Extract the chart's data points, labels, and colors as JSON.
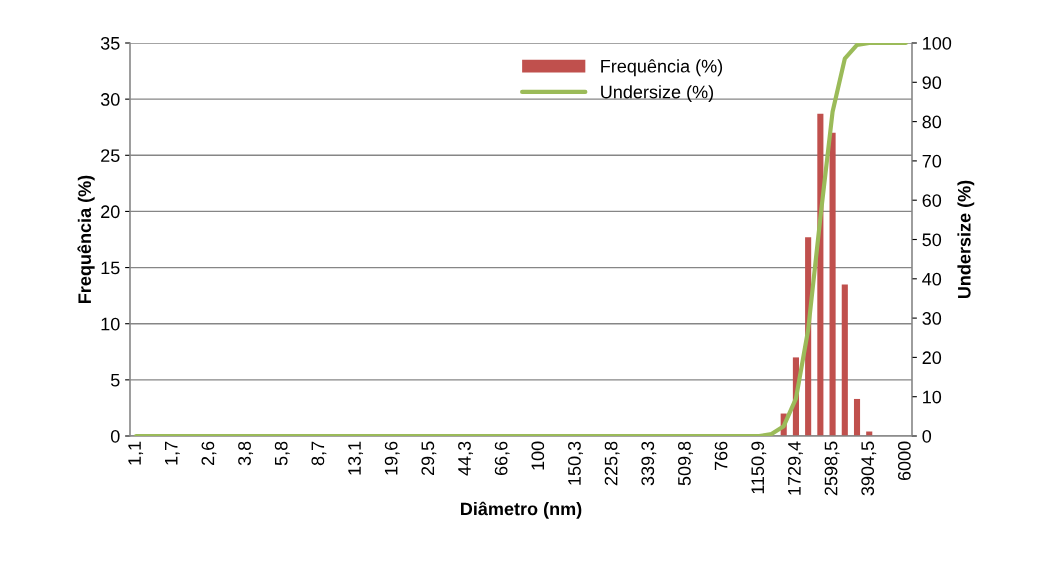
{
  "chart_data": {
    "type": "bar",
    "xlabel": "Diâmetro (nm)",
    "ylabel": "Frequência (%)",
    "y2label": "Undersize (%)",
    "categories": [
      "1,1",
      null,
      null,
      "1,7",
      null,
      null,
      "2,6",
      null,
      null,
      "3,8",
      null,
      null,
      "5,8",
      null,
      null,
      "8,7",
      null,
      null,
      "13,1",
      null,
      null,
      "19,6",
      null,
      null,
      "29,5",
      null,
      null,
      "44,3",
      null,
      null,
      "66,6",
      null,
      null,
      "100",
      null,
      null,
      "150,3",
      null,
      null,
      "225,8",
      null,
      null,
      "339,3",
      null,
      null,
      "509,8",
      null,
      null,
      "766",
      null,
      null,
      "1150,9",
      null,
      null,
      "1729,4",
      null,
      null,
      "2598,5",
      null,
      null,
      "3904,5",
      null,
      null,
      "6000"
    ],
    "series": [
      {
        "name": "Frequência (%)",
        "color": "#c0504d",
        "values": [
          0,
          0,
          0,
          0,
          0,
          0,
          0,
          0,
          0,
          0,
          0,
          0,
          0,
          0,
          0,
          0,
          0,
          0,
          0,
          0,
          0,
          0,
          0,
          0,
          0,
          0,
          0,
          0,
          0,
          0,
          0,
          0,
          0,
          0,
          0,
          0,
          0,
          0,
          0,
          0,
          0,
          0,
          0,
          0,
          0,
          0,
          0,
          0,
          0,
          0,
          0,
          0,
          0,
          2,
          7,
          17.7,
          28.7,
          27,
          13.5,
          3.3,
          0.4,
          0,
          0,
          0
        ]
      },
      {
        "name": "Undersize (%)",
        "type": "line",
        "axis": "y2",
        "color": "#9bbb59",
        "values": [
          0,
          0,
          0,
          0,
          0,
          0,
          0,
          0,
          0,
          0,
          0,
          0,
          0,
          0,
          0,
          0,
          0,
          0,
          0,
          0,
          0,
          0,
          0,
          0,
          0,
          0,
          0,
          0,
          0,
          0,
          0,
          0,
          0,
          0,
          0,
          0,
          0,
          0,
          0,
          0,
          0,
          0,
          0,
          0,
          0,
          0,
          0,
          0,
          0,
          0,
          0,
          0,
          0.5,
          2.5,
          9.5,
          27,
          55.5,
          82.5,
          96,
          99.5,
          100,
          100,
          100,
          100
        ]
      }
    ],
    "ylim": [
      0,
      35
    ],
    "yticks": [
      0,
      5,
      10,
      15,
      20,
      25,
      30,
      35
    ],
    "y2lim": [
      0,
      100
    ],
    "y2ticks": [
      0,
      10,
      20,
      30,
      40,
      50,
      60,
      70,
      80,
      90,
      100
    ],
    "grid": "y",
    "legend": "top",
    "marker": "none",
    "line_style": "solid"
  }
}
